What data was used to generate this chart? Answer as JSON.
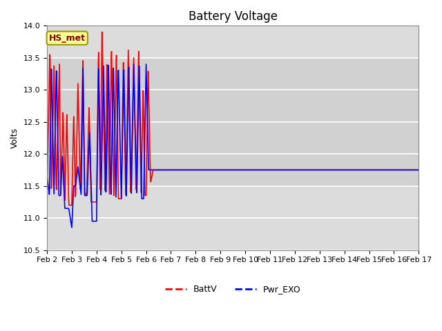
{
  "title": "Battery Voltage",
  "ylabel": "Volts",
  "xlabel": "",
  "ylim": [
    10.5,
    14.0
  ],
  "yticks": [
    10.5,
    11.0,
    11.5,
    12.0,
    12.5,
    13.0,
    13.5,
    14.0
  ],
  "xtick_labels": [
    "Feb 2",
    "Feb 3",
    "Feb 4",
    "Feb 5",
    "Feb 6",
    "Feb 7",
    "Feb 8",
    "Feb 9",
    "Feb 10",
    "Feb 11",
    "Feb 12",
    "Feb 13",
    "Feb 14",
    "Feb 15",
    "Feb 16",
    "Feb 17"
  ],
  "line1_color": "red",
  "line2_color": "blue",
  "line1_label": "BattV",
  "line2_label": "Pwr_EXO",
  "line_width": 1.2,
  "annotation_text": "HS_met",
  "annotation_box_color": "#FFFF99",
  "annotation_box_edge": "#999900",
  "plot_bg_color": "#DCDCDC",
  "grid_color": "#FFFFFF",
  "title_fontsize": 12,
  "axis_fontsize": 9,
  "tick_fontsize": 8,
  "legend_fontsize": 9,
  "n_days": 15,
  "figsize": [
    6.4,
    4.8
  ],
  "dpi": 100,
  "red_keypoints": [
    [
      0,
      11.4
    ],
    [
      0.12,
      13.65
    ],
    [
      0.18,
      11.35
    ],
    [
      0.28,
      13.4
    ],
    [
      0.38,
      11.35
    ],
    [
      0.5,
      13.4
    ],
    [
      0.55,
      11.35
    ],
    [
      0.65,
      12.7
    ],
    [
      0.72,
      11.25
    ],
    [
      0.8,
      12.65
    ],
    [
      0.88,
      11.2
    ],
    [
      1.0,
      11.2
    ],
    [
      1.08,
      12.65
    ],
    [
      1.15,
      11.25
    ],
    [
      1.25,
      13.1
    ],
    [
      1.35,
      11.35
    ],
    [
      1.45,
      13.5
    ],
    [
      1.52,
      11.4
    ],
    [
      1.6,
      11.35
    ],
    [
      1.7,
      12.75
    ],
    [
      1.78,
      11.25
    ],
    [
      1.88,
      11.25
    ],
    [
      2.0,
      11.25
    ],
    [
      2.08,
      13.7
    ],
    [
      2.15,
      11.3
    ],
    [
      2.22,
      13.95
    ],
    [
      2.35,
      11.3
    ],
    [
      2.42,
      13.5
    ],
    [
      2.52,
      11.35
    ],
    [
      2.6,
      13.7
    ],
    [
      2.7,
      11.3
    ],
    [
      2.8,
      13.6
    ],
    [
      2.88,
      11.3
    ],
    [
      3.0,
      11.3
    ],
    [
      3.08,
      13.5
    ],
    [
      3.18,
      11.3
    ],
    [
      3.28,
      13.65
    ],
    [
      3.38,
      11.3
    ],
    [
      3.5,
      13.5
    ],
    [
      3.6,
      11.35
    ],
    [
      3.7,
      13.65
    ],
    [
      3.8,
      11.35
    ],
    [
      3.88,
      13.1
    ],
    [
      3.95,
      11.35
    ],
    [
      4.0,
      11.35
    ],
    [
      4.08,
      13.35
    ],
    [
      4.18,
      11.55
    ],
    [
      4.28,
      11.75
    ],
    [
      4.35,
      11.75
    ]
  ],
  "blue_keypoints": [
    [
      0,
      11.65
    ],
    [
      0.1,
      11.35
    ],
    [
      0.18,
      13.4
    ],
    [
      0.28,
      11.35
    ],
    [
      0.38,
      13.4
    ],
    [
      0.48,
      11.35
    ],
    [
      0.55,
      11.35
    ],
    [
      0.62,
      12.0
    ],
    [
      0.72,
      11.15
    ],
    [
      0.78,
      11.15
    ],
    [
      0.88,
      11.15
    ],
    [
      1.0,
      10.85
    ],
    [
      1.08,
      11.5
    ],
    [
      1.15,
      11.5
    ],
    [
      1.25,
      11.8
    ],
    [
      1.38,
      11.35
    ],
    [
      1.45,
      13.4
    ],
    [
      1.52,
      11.35
    ],
    [
      1.62,
      11.35
    ],
    [
      1.72,
      12.35
    ],
    [
      1.82,
      10.95
    ],
    [
      2.0,
      10.95
    ],
    [
      2.08,
      13.4
    ],
    [
      2.18,
      11.3
    ],
    [
      2.28,
      13.4
    ],
    [
      2.38,
      11.3
    ],
    [
      2.48,
      13.4
    ],
    [
      2.58,
      11.3
    ],
    [
      2.68,
      13.4
    ],
    [
      2.78,
      11.3
    ],
    [
      2.88,
      13.4
    ],
    [
      3.0,
      11.3
    ],
    [
      3.1,
      13.4
    ],
    [
      3.2,
      11.3
    ],
    [
      3.3,
      13.4
    ],
    [
      3.4,
      11.3
    ],
    [
      3.5,
      13.4
    ],
    [
      3.62,
      11.3
    ],
    [
      3.72,
      13.4
    ],
    [
      3.82,
      11.3
    ],
    [
      3.9,
      11.3
    ],
    [
      4.0,
      13.4
    ],
    [
      4.1,
      11.75
    ],
    [
      4.28,
      11.75
    ],
    [
      4.35,
      11.75
    ]
  ]
}
